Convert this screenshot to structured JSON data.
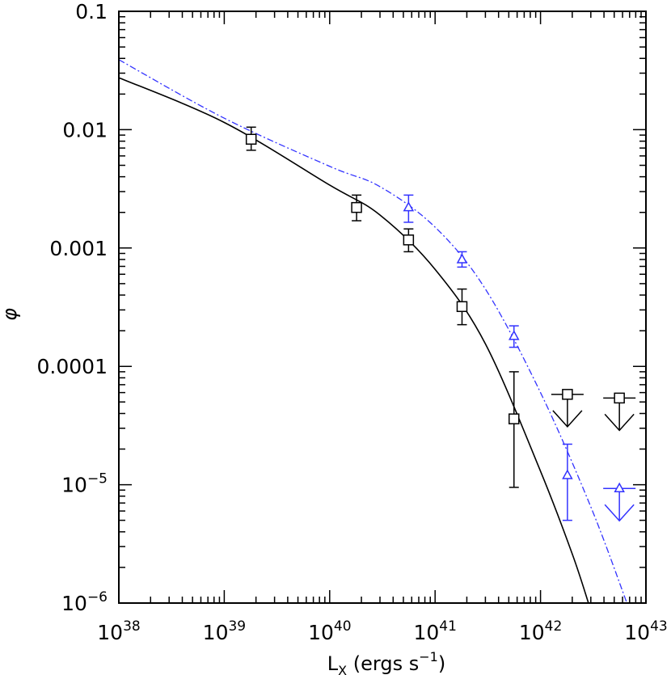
{
  "chart_data": {
    "type": "scatter",
    "title": "",
    "xlabel": "L",
    "xlabel_sub": "X",
    "xlabel_units": "(ergs s",
    "xlabel_units_sup": "−1",
    "xlabel_units_close": ")",
    "ylabel": "φ",
    "x_scale": "log",
    "y_scale": "log",
    "xlim": [
      1e+38,
      1e+43
    ],
    "ylim": [
      1e-06,
      0.1
    ],
    "x_ticks": [
      {
        "value": 1e+38,
        "base": "10",
        "exp": "38"
      },
      {
        "value": 1e+39,
        "base": "10",
        "exp": "39"
      },
      {
        "value": 1e+40,
        "base": "10",
        "exp": "40"
      },
      {
        "value": 1e+41,
        "base": "10",
        "exp": "41"
      },
      {
        "value": 1e+42,
        "base": "10",
        "exp": "42"
      },
      {
        "value": 1e+43,
        "base": "10",
        "exp": "43"
      }
    ],
    "y_ticks": [
      {
        "value": 0.1,
        "text": "0.1"
      },
      {
        "value": 0.01,
        "text": "0.01"
      },
      {
        "value": 0.001,
        "text": "0.001"
      },
      {
        "value": 0.0001,
        "text": "0.0001"
      },
      {
        "value": 1e-05,
        "base": "10",
        "exp": "−5"
      },
      {
        "value": 1e-06,
        "base": "10",
        "exp": "−6"
      }
    ],
    "grid": false,
    "legend": "none",
    "series": [
      {
        "marker": "square",
        "color": "#000000",
        "points": [
          {
            "x": 1.8e+39,
            "y": 0.0083,
            "ylo": 0.0067,
            "yhi": 0.0105
          },
          {
            "x": 1.8e+40,
            "y": 0.0022,
            "ylo": 0.0017,
            "yhi": 0.0028
          },
          {
            "x": 5.6e+40,
            "y": 0.00117,
            "ylo": 0.00093,
            "yhi": 0.00145
          },
          {
            "x": 1.8e+41,
            "y": 0.00032,
            "ylo": 0.000225,
            "yhi": 0.00045
          },
          {
            "x": 5.6e+41,
            "y": 3.6e-05,
            "ylo": 9.5e-06,
            "yhi": 9e-05
          }
        ],
        "upper_limits": [
          {
            "x": 1.8e+42,
            "y": 5.8e-05
          },
          {
            "x": 5.6e+42,
            "y": 5.4e-05
          }
        ]
      },
      {
        "marker": "triangle",
        "color": "#3333ff",
        "points": [
          {
            "x": 5.6e+40,
            "y": 0.0022,
            "ylo": 0.00165,
            "yhi": 0.0028
          },
          {
            "x": 1.8e+41,
            "y": 0.0008,
            "ylo": 0.00069,
            "yhi": 0.00093
          },
          {
            "x": 5.6e+41,
            "y": 0.00018,
            "ylo": 0.000145,
            "yhi": 0.00022
          },
          {
            "x": 1.8e+42,
            "y": 1.2e-05,
            "ylo": 5e-06,
            "yhi": 2.2e-05
          }
        ],
        "upper_limits": [
          {
            "x": 5.6e+42,
            "y": 9.3e-06
          }
        ]
      }
    ],
    "fit_lines": [
      {
        "style": "solid",
        "color": "#000000",
        "points": [
          [
            1e+38,
            0.0275
          ],
          [
            1e+39,
            0.0115
          ],
          [
            1e+40,
            0.0034
          ],
          [
            3e+40,
            0.0019
          ],
          [
            1e+41,
            0.00066
          ],
          [
            3e+41,
            0.000155
          ],
          [
            1e+42,
            1.3e-05
          ],
          [
            2e+42,
            2.6e-06
          ],
          [
            2.85e+42,
            1e-06
          ]
        ]
      },
      {
        "style": "dashdot",
        "color": "#3333ff",
        "points": [
          [
            1e+38,
            0.039
          ],
          [
            1e+39,
            0.0125
          ],
          [
            1e+40,
            0.0049
          ],
          [
            3e+40,
            0.0033
          ],
          [
            1e+41,
            0.0015
          ],
          [
            3e+41,
            0.00045
          ],
          [
            1e+42,
            6e-05
          ],
          [
            3e+42,
            6.5e-06
          ],
          [
            6.6e+42,
            1e-06
          ]
        ]
      }
    ]
  }
}
